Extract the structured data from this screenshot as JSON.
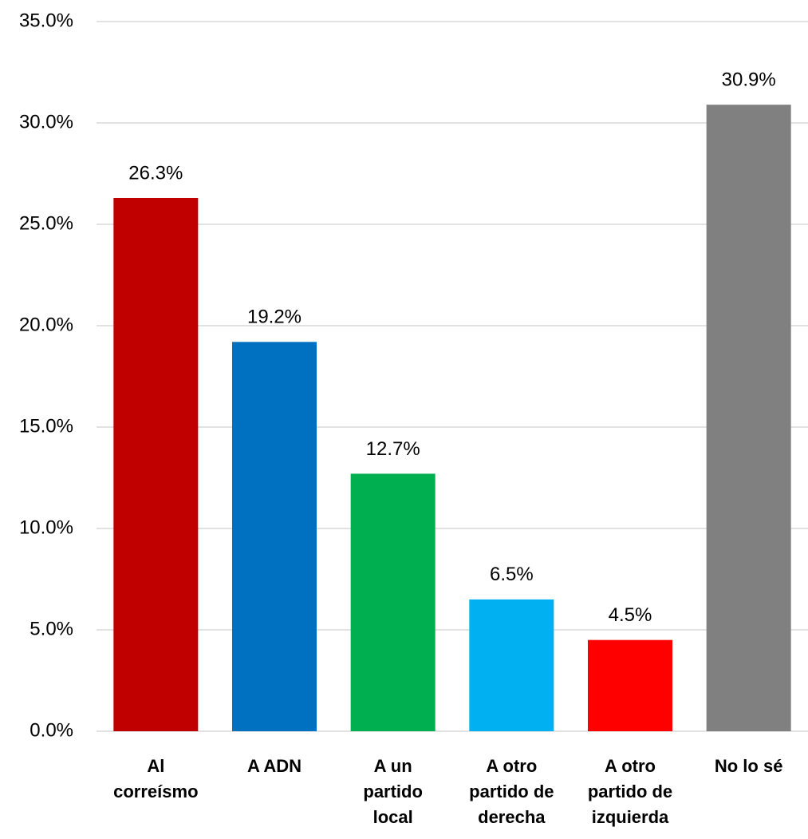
{
  "chart_data": {
    "type": "bar",
    "categories": [
      "Al correísmo",
      "A ADN",
      "A un partido local",
      "A otro partido de derecha",
      "A otro partido de izquierda",
      "No lo sé"
    ],
    "values": [
      26.3,
      19.2,
      12.7,
      6.5,
      4.5,
      30.9
    ],
    "value_labels": [
      "26.3%",
      "19.2%",
      "12.7%",
      "6.5%",
      "4.5%",
      "30.9%"
    ],
    "colors": [
      "#c00000",
      "#0070c0",
      "#00b050",
      "#00b0f0",
      "#ff0000",
      "#808080"
    ],
    "ylim": [
      0,
      35
    ],
    "yticks": [
      {
        "value": 0,
        "label": "0.0%"
      },
      {
        "value": 5,
        "label": "5.0%"
      },
      {
        "value": 10,
        "label": "10.0%"
      },
      {
        "value": 15,
        "label": "15.0%"
      },
      {
        "value": 20,
        "label": "20.0%"
      },
      {
        "value": 25,
        "label": "25.0%"
      },
      {
        "value": 30,
        "label": "30.0%"
      },
      {
        "value": 35,
        "label": "35.0%"
      }
    ],
    "grid": true
  }
}
